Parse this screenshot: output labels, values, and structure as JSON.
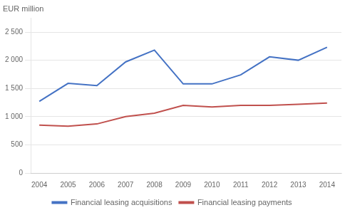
{
  "chart_data": {
    "type": "line",
    "ylabel": "EUR million",
    "x": [
      2004,
      2005,
      2006,
      2007,
      2008,
      2009,
      2010,
      2011,
      2012,
      2013,
      2014
    ],
    "series": [
      {
        "name": "Financial leasing acquisitions",
        "color": "#4472C4",
        "values": [
          1270,
          1590,
          1550,
          1970,
          2180,
          1580,
          1580,
          1740,
          2060,
          2000,
          2230
        ]
      },
      {
        "name": "Financial leasing payments",
        "color": "#C0504D",
        "values": [
          850,
          830,
          870,
          1000,
          1060,
          1200,
          1170,
          1200,
          1200,
          1220,
          1240
        ]
      }
    ],
    "xlim": [
      2003.7,
      2014.5
    ],
    "xticks": [
      2004,
      2005,
      2006,
      2007,
      2008,
      2009,
      2010,
      2011,
      2012,
      2013,
      2014
    ],
    "ylim": [
      0,
      2750
    ],
    "yticks": [
      0,
      500,
      {
        "value": 1000,
        "label": "1 000"
      },
      {
        "value": 1500,
        "label": "1 500"
      },
      {
        "value": 2000,
        "label": "2 000"
      },
      {
        "value": 2500,
        "label": "2 500"
      }
    ],
    "grid": "y",
    "legend": "bottom"
  }
}
